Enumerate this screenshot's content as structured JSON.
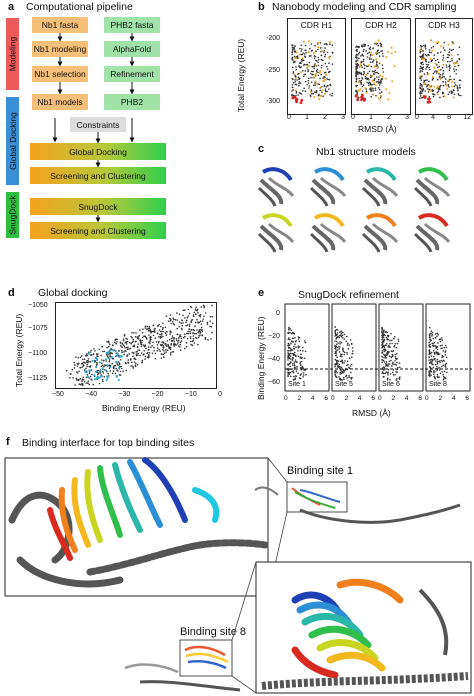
{
  "panel_a": {
    "label": "a",
    "title": "Computational pipeline",
    "sections": [
      "Modeling",
      "Global Docking",
      "SnugDock"
    ],
    "section_colors": [
      "#ec5a5a",
      "#3b8fd6",
      "#2fbf3e"
    ],
    "left_steps": [
      "Nb1 fasta",
      "Nb1 modeling",
      "Nb1 selection",
      "Nb1 models"
    ],
    "right_steps": [
      "PHB2 fasta",
      "AlphaFold",
      "Refinement",
      "PHB2"
    ],
    "constraints": "Constraints",
    "stages": [
      "Global Docking",
      "Screening and Clustering",
      "SnugDock",
      "Screening and Clustering"
    ]
  },
  "panel_b": {
    "label": "b",
    "title": "Nanobody modeling and CDR sampling",
    "ylabel": "Total Energy (REU)",
    "xlabel": "RMSD (Å)",
    "subplots": [
      "CDR H1",
      "CDR H2",
      "CDR H3"
    ],
    "yticks": [
      "-200",
      "-250",
      "-300"
    ],
    "xticks": [
      [
        "0",
        "1",
        "2",
        "3"
      ],
      [
        "0",
        "1",
        "2",
        "3"
      ],
      [
        "0",
        "4",
        "8",
        "12"
      ]
    ]
  },
  "panel_c": {
    "label": "c",
    "title": "Nb1 structure models",
    "model_colors": [
      "#1f3fb5",
      "#2c8fd6",
      "#2bb7a8",
      "#2fbf4a",
      "#c8d622",
      "#f2b81e",
      "#f0801b",
      "#d92a1f"
    ]
  },
  "panel_d": {
    "label": "d",
    "title": "Global docking",
    "ylabel": "Total Energy (REU)",
    "xlabel": "Binding Energy (REU)",
    "yticks": [
      "−1050",
      "−1075",
      "−1100",
      "−1125"
    ],
    "xticks": [
      "−50",
      "−40",
      "−30",
      "−20",
      "−10",
      "0"
    ]
  },
  "panel_e": {
    "label": "e",
    "title": "SnugDock refinement",
    "ylabel": "Binding Energy (REU)",
    "xlabel": "RMSD (Å)",
    "yticks": [
      "0",
      "−20",
      "−40",
      "−60"
    ],
    "sites": [
      "Site 1",
      "Site 5",
      "Site 6",
      "Site 8"
    ],
    "xticks": [
      "0",
      "2",
      "4",
      "6"
    ]
  },
  "panel_f": {
    "label": "f",
    "title": "Binding interface for top binding sites",
    "site1": "Binding site 1",
    "site8": "Binding site 8"
  }
}
